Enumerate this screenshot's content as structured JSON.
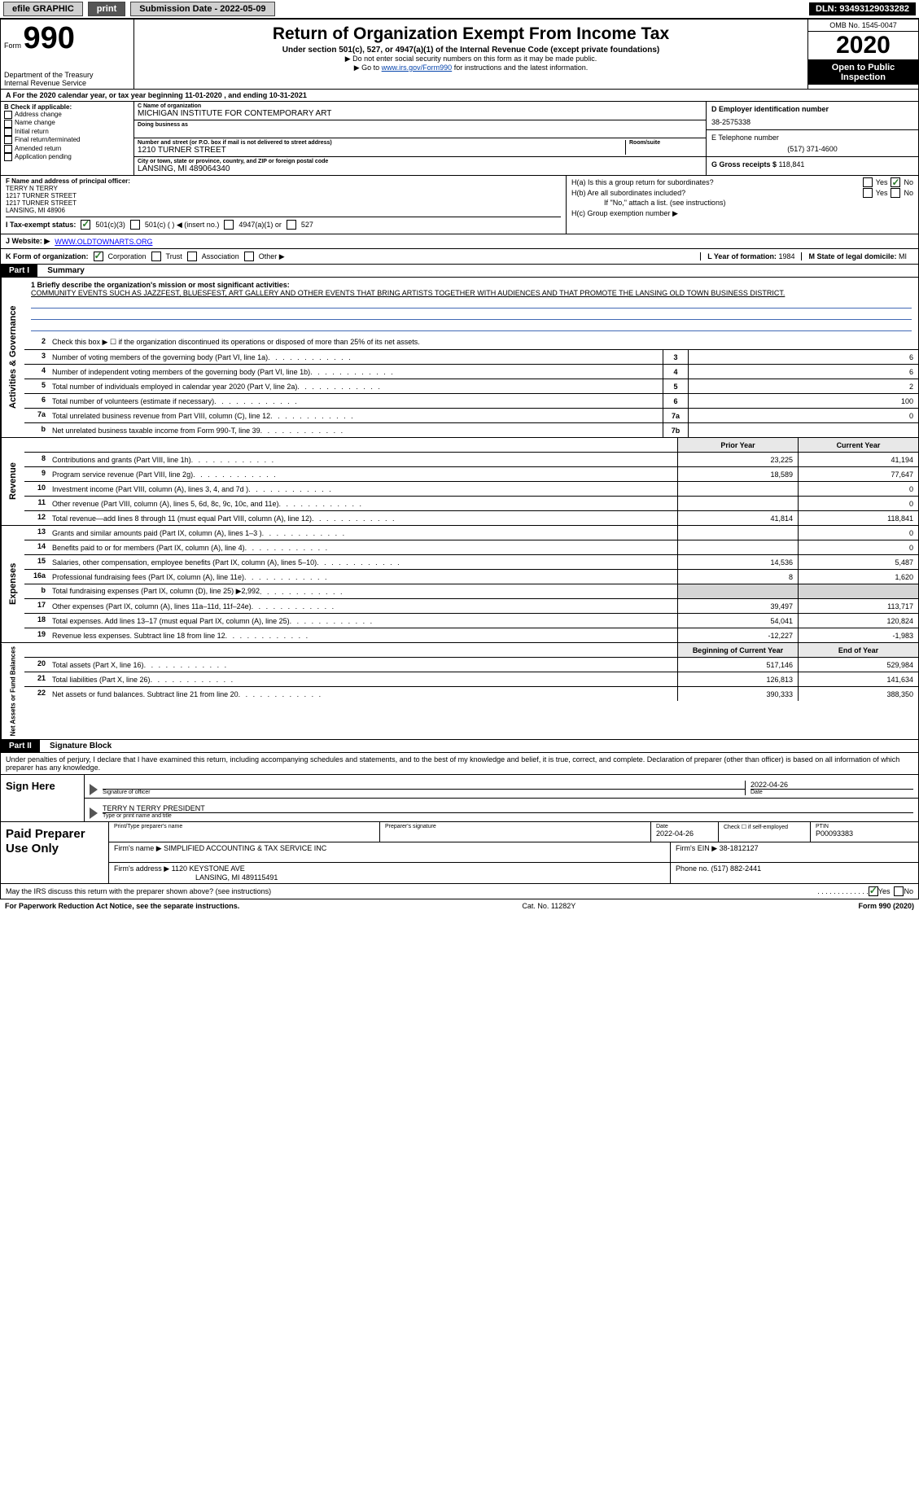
{
  "topbar": {
    "efile": "efile GRAPHIC",
    "print": "print",
    "subdate_label": "Submission Date - ",
    "subdate": "2022-05-09",
    "dln_label": "DLN: ",
    "dln": "93493129033282"
  },
  "header": {
    "form_prefix": "Form",
    "form_num": "990",
    "dept": "Department of the Treasury",
    "irs": "Internal Revenue Service",
    "title": "Return of Organization Exempt From Income Tax",
    "sub1": "Under section 501(c), 527, or 4947(a)(1) of the Internal Revenue Code (except private foundations)",
    "sub2": "▶ Do not enter social security numbers on this form as it may be made public.",
    "sub3_pre": "▶ Go to ",
    "sub3_link": "www.irs.gov/Form990",
    "sub3_post": " for instructions and the latest information.",
    "omb": "OMB No. 1545-0047",
    "year": "2020",
    "otp1": "Open to Public",
    "otp2": "Inspection"
  },
  "section_a": "A For the 2020 calendar year, or tax year beginning 11-01-2020    , and ending 10-31-2021",
  "section_b": {
    "title": "B Check if applicable:",
    "opts": [
      "Address change",
      "Name change",
      "Initial return",
      "Final return/terminated",
      "Amended return",
      "Application pending"
    ]
  },
  "section_c": {
    "name_label": "C Name of organization",
    "name": "MICHIGAN INSTITUTE FOR CONTEMPORARY ART",
    "dba_label": "Doing business as",
    "addr_label": "Number and street (or P.O. box if mail is not delivered to street address)",
    "addr": "1210 TURNER STREET",
    "suite_label": "Room/suite",
    "city_label": "City or town, state or province, country, and ZIP or foreign postal code",
    "city": "LANSING, MI  489064340"
  },
  "section_d": {
    "label": "D Employer identification number",
    "ein": "38-2575338",
    "e_label": "E Telephone number",
    "phone": "(517) 371-4600",
    "g_label": "G Gross receipts $ ",
    "gross": "118,841"
  },
  "section_f": {
    "label": "F Name and address of principal officer:",
    "name": "TERRY N TERRY",
    "l1": "1217 TURNER STREET",
    "l2": "1217 TURNER STREET",
    "l3": "LANSING, MI  48906"
  },
  "section_h": {
    "ha": "H(a)  Is this a group return for subordinates?",
    "hb": "H(b)  Are all subordinates included?",
    "hb_note": "If \"No,\" attach a list. (see instructions)",
    "hc": "H(c)  Group exemption number ▶",
    "yes": "Yes",
    "no": "No"
  },
  "section_i": {
    "label": "I   Tax-exempt status:",
    "o1": "501(c)(3)",
    "o2": "501(c) (   ) ◀ (insert no.)",
    "o3": "4947(a)(1) or",
    "o4": "527"
  },
  "section_j": {
    "label": "J   Website: ▶",
    "url": "WWW.OLDTOWNARTS.ORG"
  },
  "section_k": {
    "label": "K Form of organization:",
    "o1": "Corporation",
    "o2": "Trust",
    "o3": "Association",
    "o4": "Other ▶",
    "l_label": "L Year of formation: ",
    "l_val": "1984",
    "m_label": "M State of legal domicile: ",
    "m_val": "MI"
  },
  "part1": {
    "bar": "Part I",
    "title": "Summary",
    "l1_label": "1  Briefly describe the organization's mission or most significant activities:",
    "mission": "COMMUNITY EVENTS SUCH AS JAZZFEST, BLUESFEST, ART GALLERY AND OTHER EVENTS THAT BRING ARTISTS TOGETHER WITH AUDIENCES AND THAT PROMOTE THE LANSING OLD TOWN BUSINESS DISTRICT.",
    "l2": "Check this box ▶ ☐  if the organization discontinued its operations or disposed of more than 25% of its net assets.",
    "side_gov": "Activities & Governance",
    "side_rev": "Revenue",
    "side_exp": "Expenses",
    "side_net": "Net Assets or Fund Balances",
    "prior_hdr": "Prior Year",
    "curr_hdr": "Current Year",
    "begin_hdr": "Beginning of Current Year",
    "end_hdr": "End of Year",
    "rows_gov": [
      {
        "n": "3",
        "d": "Number of voting members of the governing body (Part VI, line 1a)",
        "box": "3",
        "v": "6"
      },
      {
        "n": "4",
        "d": "Number of independent voting members of the governing body (Part VI, line 1b)",
        "box": "4",
        "v": "6"
      },
      {
        "n": "5",
        "d": "Total number of individuals employed in calendar year 2020 (Part V, line 2a)",
        "box": "5",
        "v": "2"
      },
      {
        "n": "6",
        "d": "Total number of volunteers (estimate if necessary)",
        "box": "6",
        "v": "100"
      },
      {
        "n": "7a",
        "d": "Total unrelated business revenue from Part VIII, column (C), line 12",
        "box": "7a",
        "v": "0"
      },
      {
        "n": "b",
        "d": "Net unrelated business taxable income from Form 990-T, line 39",
        "box": "7b",
        "v": ""
      }
    ],
    "rows_rev": [
      {
        "n": "8",
        "d": "Contributions and grants (Part VIII, line 1h)",
        "p": "23,225",
        "c": "41,194"
      },
      {
        "n": "9",
        "d": "Program service revenue (Part VIII, line 2g)",
        "p": "18,589",
        "c": "77,647"
      },
      {
        "n": "10",
        "d": "Investment income (Part VIII, column (A), lines 3, 4, and 7d )",
        "p": "",
        "c": "0"
      },
      {
        "n": "11",
        "d": "Other revenue (Part VIII, column (A), lines 5, 6d, 8c, 9c, 10c, and 11e)",
        "p": "",
        "c": "0"
      },
      {
        "n": "12",
        "d": "Total revenue—add lines 8 through 11 (must equal Part VIII, column (A), line 12)",
        "p": "41,814",
        "c": "118,841"
      }
    ],
    "rows_exp": [
      {
        "n": "13",
        "d": "Grants and similar amounts paid (Part IX, column (A), lines 1–3 )",
        "p": "",
        "c": "0"
      },
      {
        "n": "14",
        "d": "Benefits paid to or for members (Part IX, column (A), line 4)",
        "p": "",
        "c": "0"
      },
      {
        "n": "15",
        "d": "Salaries, other compensation, employee benefits (Part IX, column (A), lines 5–10)",
        "p": "14,536",
        "c": "5,487"
      },
      {
        "n": "16a",
        "d": "Professional fundraising fees (Part IX, column (A), line 11e)",
        "p": "8",
        "c": "1,620"
      },
      {
        "n": "b",
        "d": "Total fundraising expenses (Part IX, column (D), line 25) ▶2,992",
        "p": "",
        "c": "",
        "shade": true
      },
      {
        "n": "17",
        "d": "Other expenses (Part IX, column (A), lines 11a–11d, 11f–24e)",
        "p": "39,497",
        "c": "113,717"
      },
      {
        "n": "18",
        "d": "Total expenses. Add lines 13–17 (must equal Part IX, column (A), line 25)",
        "p": "54,041",
        "c": "120,824"
      },
      {
        "n": "19",
        "d": "Revenue less expenses. Subtract line 18 from line 12",
        "p": "-12,227",
        "c": "-1,983"
      }
    ],
    "rows_net": [
      {
        "n": "20",
        "d": "Total assets (Part X, line 16)",
        "p": "517,146",
        "c": "529,984"
      },
      {
        "n": "21",
        "d": "Total liabilities (Part X, line 26)",
        "p": "126,813",
        "c": "141,634"
      },
      {
        "n": "22",
        "d": "Net assets or fund balances. Subtract line 21 from line 20",
        "p": "390,333",
        "c": "388,350"
      }
    ]
  },
  "part2": {
    "bar": "Part II",
    "title": "Signature Block",
    "intro": "Under penalties of perjury, I declare that I have examined this return, including accompanying schedules and statements, and to the best of my knowledge and belief, it is true, correct, and complete. Declaration of preparer (other than officer) is based on all information of which preparer has any knowledge.",
    "sign_here": "Sign Here",
    "sig_label": "Signature of officer",
    "date_label": "Date",
    "sig_date": "2022-04-26",
    "name_label": "Type or print name and title",
    "name_val": "TERRY N TERRY PRESIDENT",
    "paid": "Paid Preparer Use Only",
    "pname_label": "Print/Type preparer's name",
    "psig_label": "Preparer's signature",
    "pdate_label": "Date",
    "pdate": "2022-04-26",
    "pcheck_label": "Check ☐ if self-employed",
    "ptin_label": "PTIN",
    "ptin": "P00093383",
    "firm_name_label": "Firm's name    ▶ ",
    "firm_name": "SIMPLIFIED ACCOUNTING & TAX SERVICE INC",
    "firm_ein_label": "Firm's EIN ▶ ",
    "firm_ein": "38-1812127",
    "firm_addr_label": "Firm's address ▶ ",
    "firm_addr1": "1120 KEYSTONE AVE",
    "firm_addr2": "LANSING, MI  489115491",
    "firm_phone_label": "Phone no. ",
    "firm_phone": "(517) 882-2441",
    "may_irs": "May the IRS discuss this return with the preparer shown above? (see instructions)",
    "yes": "Yes",
    "no": "No"
  },
  "footer": {
    "left": "For Paperwork Reduction Act Notice, see the separate instructions.",
    "mid": "Cat. No. 11282Y",
    "right": "Form 990 (2020)"
  }
}
